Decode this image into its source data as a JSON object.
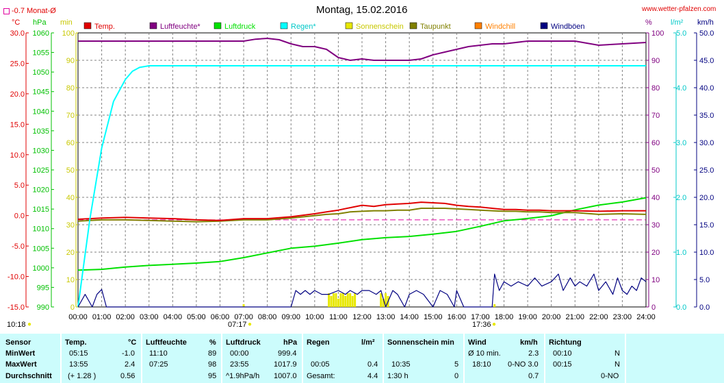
{
  "header": {
    "title": "Montag, 15.02.2016",
    "site": "www.wetter-pfalzen.com",
    "monthly_avg_label": "-0.7 Monat-Ø"
  },
  "axes": {
    "left_units": [
      "°C",
      "hPa",
      "min"
    ],
    "right_units": [
      "%",
      "l/m²",
      "km/h"
    ],
    "temp_ticks": [
      "30.0",
      "25.0",
      "20.0",
      "15.0",
      "10.0",
      "5.0",
      "0.0",
      "-5.0",
      "-10.0",
      "-15.0"
    ],
    "hpa_ticks": [
      "1060",
      "1055",
      "1050",
      "1045",
      "1040",
      "1035",
      "1030",
      "1025",
      "1020",
      "1015",
      "1010",
      "1005",
      "1000",
      "995",
      "990"
    ],
    "min_ticks": [
      "100",
      "90",
      "80",
      "70",
      "60",
      "50",
      "40",
      "30",
      "20",
      "10",
      "0"
    ],
    "pct_ticks": [
      "100",
      "90",
      "80",
      "70",
      "60",
      "50",
      "40",
      "30",
      "20",
      "10",
      "0"
    ],
    "rain_ticks": [
      "5.0",
      "4.0",
      "3.0",
      "2.0",
      "1.0",
      "0.0"
    ],
    "wind_ticks": [
      "50.0",
      "45.0",
      "40.0",
      "35.0",
      "30.0",
      "25.0",
      "20.0",
      "15.0",
      "10.0",
      "5.0",
      "0.0"
    ],
    "time_ticks": [
      "00:00",
      "01:00",
      "02:00",
      "03:00",
      "04:00",
      "05:00",
      "06:00",
      "07:00",
      "08:00",
      "09:00",
      "10:00",
      "11:00",
      "12:00",
      "13:00",
      "14:00",
      "15:00",
      "16:00",
      "17:00",
      "18:00",
      "19:00",
      "20:00",
      "21:00",
      "22:00",
      "23:00",
      "24:00"
    ],
    "sunrise": "07:17",
    "sunset": "17:36",
    "corner_time": "10:18"
  },
  "legend": [
    {
      "label": "Temp.",
      "color": "#e00000"
    },
    {
      "label": "Luftfeuchte*",
      "color": "#800080"
    },
    {
      "label": "Luftdruck",
      "color": "#00e000"
    },
    {
      "label": "Regen*",
      "color": "#00ffff"
    },
    {
      "label": "Sonnenschein",
      "color": "#e8e800"
    },
    {
      "label": "Taupunkt",
      "color": "#808000"
    },
    {
      "label": "Windchill",
      "color": "#ff8000"
    },
    {
      "label": "Windböen",
      "color": "#000080"
    }
  ],
  "chart_data": {
    "type": "line",
    "title": "Montag, 15.02.2016",
    "x_unit": "hour",
    "xlim": [
      0,
      24
    ],
    "grid": true,
    "legend_position": "top",
    "series": [
      {
        "name": "Temp.",
        "axis": "temp",
        "color": "#e00000",
        "x": [
          0,
          1,
          2,
          3,
          4,
          5,
          6,
          7,
          8,
          9,
          10,
          10.5,
          11,
          11.5,
          12,
          12.5,
          13,
          13.5,
          14,
          14.5,
          15,
          15.5,
          16,
          16.5,
          17,
          17.5,
          18,
          18.5,
          19,
          19.5,
          20,
          20.5,
          21,
          22,
          23,
          24
        ],
        "y": [
          -0.6,
          -0.4,
          -0.3,
          -0.4,
          -0.5,
          -0.7,
          -0.8,
          -0.5,
          -0.5,
          -0.2,
          0.3,
          0.6,
          0.9,
          1.3,
          1.7,
          1.5,
          1.8,
          1.9,
          2.0,
          2.2,
          2.1,
          2.0,
          1.7,
          1.5,
          1.4,
          1.2,
          1.0,
          1.0,
          0.9,
          0.9,
          0.8,
          0.8,
          0.8,
          0.7,
          0.8,
          0.8
        ]
      },
      {
        "name": "Taupunkt",
        "axis": "temp",
        "color": "#808000",
        "x": [
          0,
          1,
          2,
          3,
          4,
          5,
          6,
          7,
          8,
          9,
          10,
          10.5,
          11,
          11.5,
          12,
          12.5,
          13,
          13.5,
          14,
          14.5,
          15,
          15.5,
          16,
          16.5,
          17,
          17.5,
          18,
          18.5,
          19,
          19.5,
          20,
          20.5,
          21,
          22,
          23,
          24
        ],
        "y": [
          -0.9,
          -0.7,
          -0.7,
          -0.8,
          -0.9,
          -1.0,
          -0.9,
          -0.7,
          -0.7,
          -0.4,
          0.0,
          0.2,
          0.3,
          0.6,
          0.7,
          0.8,
          0.8,
          0.9,
          0.9,
          1.2,
          1.2,
          1.2,
          1.1,
          1.0,
          0.9,
          0.8,
          0.7,
          0.7,
          0.6,
          0.6,
          0.5,
          0.5,
          0.5,
          0.2,
          0.3,
          0.2
        ]
      },
      {
        "name": "Luftfeuchte*",
        "axis": "pct",
        "color": "#800080",
        "x": [
          0,
          1,
          2,
          3,
          4,
          5,
          6,
          7,
          7.5,
          8,
          8.5,
          9,
          9.5,
          10,
          10.5,
          11,
          11.5,
          12,
          12.5,
          13,
          13.5,
          14,
          14.5,
          15,
          15.5,
          16,
          16.5,
          17,
          17.5,
          18,
          19,
          20,
          21,
          22,
          23,
          24
        ],
        "y": [
          97,
          97,
          97,
          97,
          97,
          97,
          97,
          97,
          97.7,
          98,
          97.5,
          96,
          95,
          95,
          94,
          91,
          90,
          90.5,
          90,
          90,
          90,
          90,
          90.5,
          92,
          93,
          94,
          95,
          95.5,
          96,
          96,
          97,
          97,
          97,
          95.5,
          96,
          96.5
        ]
      },
      {
        "name": "Luftdruck",
        "axis": "hpa",
        "color": "#00e000",
        "x": [
          0,
          1,
          2,
          3,
          4,
          5,
          6,
          7,
          8,
          9,
          10,
          11,
          12,
          13,
          14,
          15,
          16,
          17,
          18,
          19,
          20,
          21,
          22,
          23,
          24
        ],
        "y": [
          999.4,
          999.6,
          1000.2,
          1000.6,
          1000.9,
          1001.2,
          1001.6,
          1002.6,
          1003.8,
          1005.0,
          1005.5,
          1006.3,
          1007.2,
          1007.7,
          1008.0,
          1008.6,
          1009.3,
          1010.6,
          1012.0,
          1012.6,
          1013.3,
          1014.8,
          1016.0,
          1016.8,
          1017.9
        ]
      },
      {
        "name": "Regen*",
        "axis": "rain",
        "color": "#00ffff",
        "x": [
          0,
          0.5,
          1,
          1.5,
          2,
          2.3,
          2.6,
          3,
          4,
          5,
          6,
          7,
          8,
          9,
          10,
          11,
          12,
          13,
          14,
          15,
          16,
          17,
          18,
          19,
          20,
          21,
          22,
          23,
          24
        ],
        "y": [
          0,
          1.6,
          2.9,
          3.75,
          4.15,
          4.3,
          4.37,
          4.4,
          4.4,
          4.4,
          4.4,
          4.4,
          4.4,
          4.4,
          4.4,
          4.4,
          4.4,
          4.4,
          4.4,
          4.4,
          4.4,
          4.4,
          4.4,
          4.4,
          4.4,
          4.4,
          4.4,
          4.4,
          4.4
        ]
      },
      {
        "name": "Windböen",
        "axis": "wind",
        "color": "#000080",
        "x": [
          0,
          0.3,
          0.6,
          0.8,
          1.0,
          1.2,
          1.5,
          9.0,
          9.2,
          9.4,
          9.6,
          9.8,
          10.0,
          10.3,
          10.6,
          11.0,
          11.3,
          11.5,
          11.8,
          12.0,
          12.3,
          12.6,
          12.8,
          13.0,
          13.3,
          13.5,
          13.8,
          14.0,
          14.3,
          14.6,
          15.0,
          15.3,
          15.6,
          15.9,
          16.0,
          16.3,
          16.6,
          17.0,
          17.5,
          17.6,
          17.8,
          18.0,
          18.3,
          18.6,
          19.0,
          19.3,
          19.6,
          20.0,
          20.3,
          20.5,
          20.8,
          21.0,
          21.2,
          21.5,
          21.8,
          22.0,
          22.3,
          22.6,
          22.8,
          23.0,
          23.2,
          23.4,
          23.6,
          23.8,
          24.0
        ],
        "y": [
          0,
          2.3,
          0,
          2.3,
          3.2,
          0,
          0,
          0,
          3.0,
          2.3,
          3.0,
          2.3,
          3.0,
          2.3,
          2.3,
          3.0,
          2.3,
          3.0,
          2.3,
          3.0,
          3.0,
          2.3,
          3.0,
          0,
          3.0,
          2.3,
          0,
          2.3,
          3.0,
          2.3,
          0,
          3.0,
          2.3,
          0,
          3.0,
          0,
          0,
          0,
          0,
          6.0,
          3.0,
          4.6,
          3.8,
          4.6,
          3.8,
          5.3,
          3.8,
          4.6,
          6.0,
          3.0,
          5.3,
          3.8,
          4.6,
          3.8,
          6.0,
          3.0,
          4.6,
          2.3,
          5.3,
          3.0,
          2.3,
          3.8,
          3.0,
          5.3,
          4.6
        ]
      },
      {
        "name": "Sonnenschein",
        "axis": "min",
        "color": "#e8e800",
        "x": [
          7.0,
          10.6,
          10.7,
          10.8,
          10.9,
          11.0,
          11.1,
          11.2,
          11.3,
          11.4,
          11.5,
          11.6,
          11.7,
          12.8,
          12.9,
          13.0,
          13.1,
          17.6
        ],
        "y": [
          1,
          5,
          4,
          5,
          5,
          3,
          5,
          5,
          4,
          5,
          5,
          4,
          5,
          5,
          3,
          5,
          4,
          1
        ]
      }
    ],
    "monthly_avg_temp": -0.7,
    "ylim": {
      "temp": [
        -15,
        30
      ],
      "hpa": [
        990,
        1060
      ],
      "min": [
        0,
        100
      ],
      "pct": [
        0,
        100
      ],
      "rain": [
        0,
        5
      ],
      "wind": [
        0,
        50
      ]
    }
  },
  "stats": {
    "rows": [
      "Sensor",
      "MinWert",
      "MaxWert",
      "Durchschnitt"
    ],
    "temp": {
      "h": "Temp.",
      "u": "°C",
      "min_t": "05:15",
      "min_v": "-1.0",
      "max_t": "13:55",
      "max_v": "2.4",
      "avg_extra": "(+ 1.28 )",
      "avg_v": "0.56"
    },
    "hum": {
      "h": "Luftfeuchte",
      "u": "%",
      "min_t": "11:10",
      "min_v": "89",
      "max_t": "07:25",
      "max_v": "98",
      "avg_v": "95"
    },
    "press": {
      "h": "Luftdruck",
      "u": "hPa",
      "min_t": "00:00",
      "min_v": "999.4",
      "max_t": "23:55",
      "max_v": "1017.9",
      "avg_extra": "^1.9hPa/h",
      "avg_v": "1007.0"
    },
    "rain": {
      "h": "Regen",
      "u": "l/m²",
      "max_t": "00:05",
      "max_v": "0.4",
      "avg_extra": "Gesamt:",
      "avg_v": "4.4"
    },
    "sun": {
      "h": "Sonnenschein min",
      "max_t": "10:35",
      "max_v": "5",
      "avg_extra": "1:30 h",
      "avg_v": "0"
    },
    "wind": {
      "h": "Wind",
      "u": "km/h",
      "min_t": "Ø 10 min.",
      "min_v": "2.3",
      "max_t": "18:10",
      "max_v": "0-NO 3.0",
      "avg_v": "0.7"
    },
    "dir": {
      "h": "Richtung",
      "min_t": "00:10",
      "min_v": "N",
      "max_t": "00:15",
      "max_v": "N",
      "avg_v": "0-NO"
    }
  }
}
